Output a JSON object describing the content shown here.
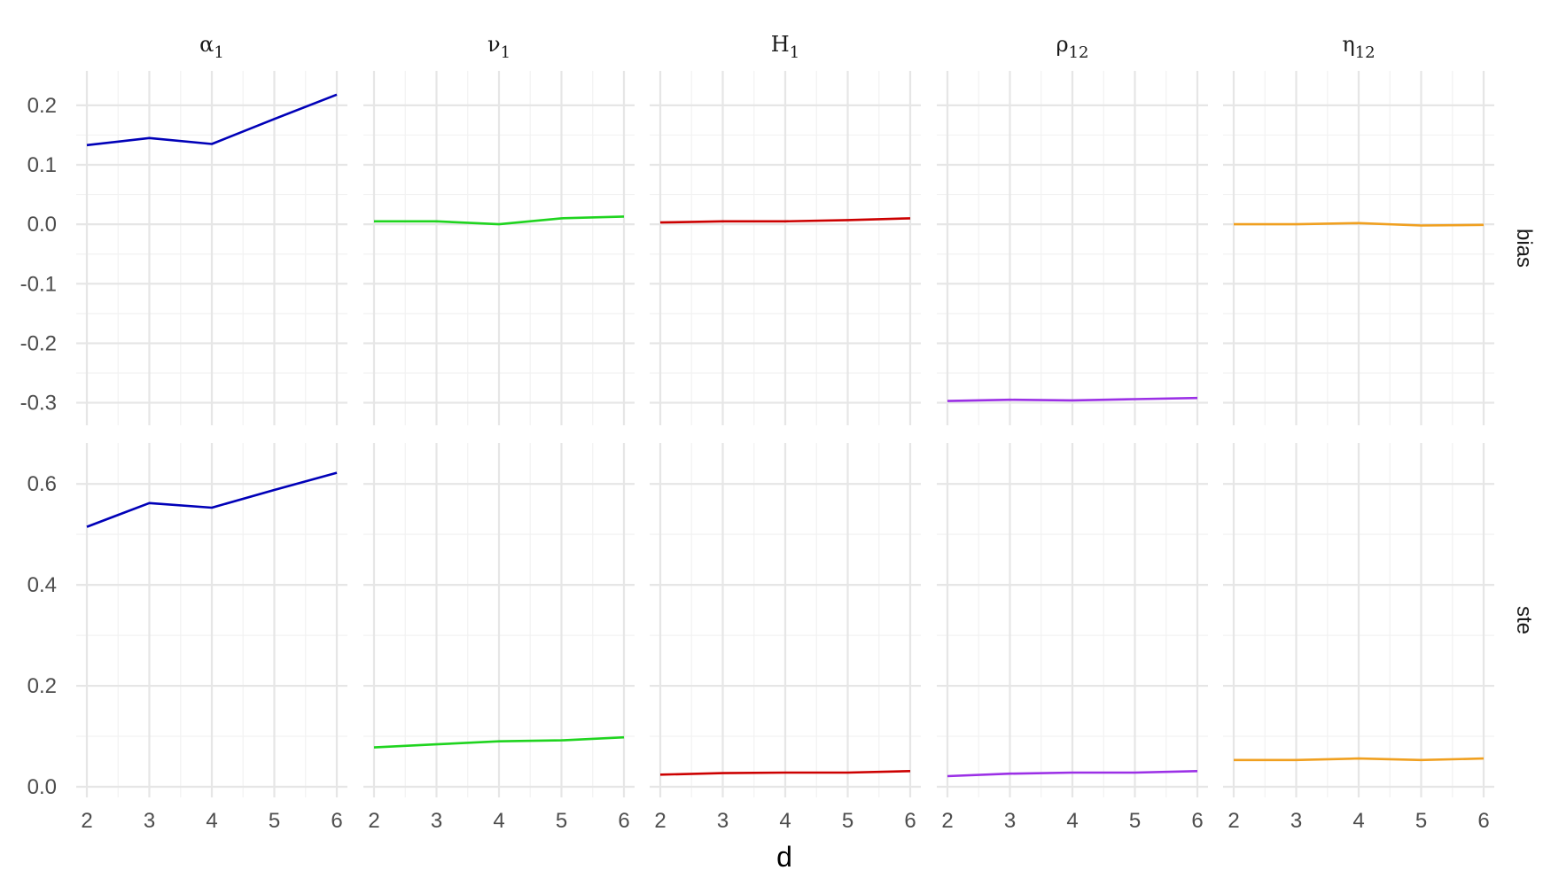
{
  "chart_data": {
    "type": "line",
    "xlabel": "d",
    "x": [
      2,
      3,
      4,
      5,
      6
    ],
    "x_ticks": [
      "2",
      "3",
      "4",
      "5",
      "6"
    ],
    "xlim": [
      2,
      6
    ],
    "grid": true,
    "legend": "none",
    "columns": [
      {
        "id": "alpha1",
        "symbol": "α",
        "sub": "1",
        "color": "#0000b8"
      },
      {
        "id": "nu1",
        "symbol": "ν",
        "sub": "1",
        "color": "#1fd41f"
      },
      {
        "id": "H1",
        "symbol": "H",
        "sub": "1",
        "color": "#cc0000"
      },
      {
        "id": "rho12",
        "symbol": "ρ",
        "sub": "12",
        "color": "#9b30e6"
      },
      {
        "id": "eta12",
        "symbol": "η",
        "sub": "12",
        "color": "#f0a020"
      }
    ],
    "rows": [
      {
        "id": "bias",
        "label": "bias",
        "ylim": [
          -0.32,
          0.24
        ],
        "y_ticks": [
          0.2,
          0.1,
          0.0,
          -0.1,
          -0.2,
          -0.3
        ],
        "y_tick_labels": [
          "0.2",
          "0.1",
          "0.0",
          "-0.1",
          "-0.2",
          "-0.3"
        ],
        "series": [
          {
            "column": "alpha1",
            "values": [
              0.133,
              0.145,
              0.135,
              0.177,
              0.218
            ]
          },
          {
            "column": "nu1",
            "values": [
              0.005,
              0.005,
              0.0,
              0.01,
              0.013
            ]
          },
          {
            "column": "H1",
            "values": [
              0.003,
              0.005,
              0.005,
              0.007,
              0.01
            ]
          },
          {
            "column": "rho12",
            "values": [
              -0.297,
              -0.295,
              -0.296,
              -0.294,
              -0.292
            ]
          },
          {
            "column": "eta12",
            "values": [
              0.0,
              0.0,
              0.002,
              -0.002,
              -0.001
            ]
          }
        ]
      },
      {
        "id": "ste",
        "label": "ste",
        "ylim": [
          0.0,
          0.66
        ],
        "y_ticks": [
          0.6,
          0.4,
          0.2,
          0.0
        ],
        "y_tick_labels": [
          "0.6",
          "0.4",
          "0.2",
          "0.0"
        ],
        "series": [
          {
            "column": "alpha1",
            "values": [
              0.515,
              0.562,
              0.553,
              0.588,
              0.622
            ]
          },
          {
            "column": "nu1",
            "values": [
              0.078,
              0.084,
              0.09,
              0.092,
              0.098
            ]
          },
          {
            "column": "H1",
            "values": [
              0.024,
              0.027,
              0.028,
              0.028,
              0.031
            ]
          },
          {
            "column": "rho12",
            "values": [
              0.021,
              0.026,
              0.028,
              0.028,
              0.031
            ]
          },
          {
            "column": "eta12",
            "values": [
              0.053,
              0.053,
              0.056,
              0.053,
              0.056
            ]
          }
        ]
      }
    ]
  }
}
